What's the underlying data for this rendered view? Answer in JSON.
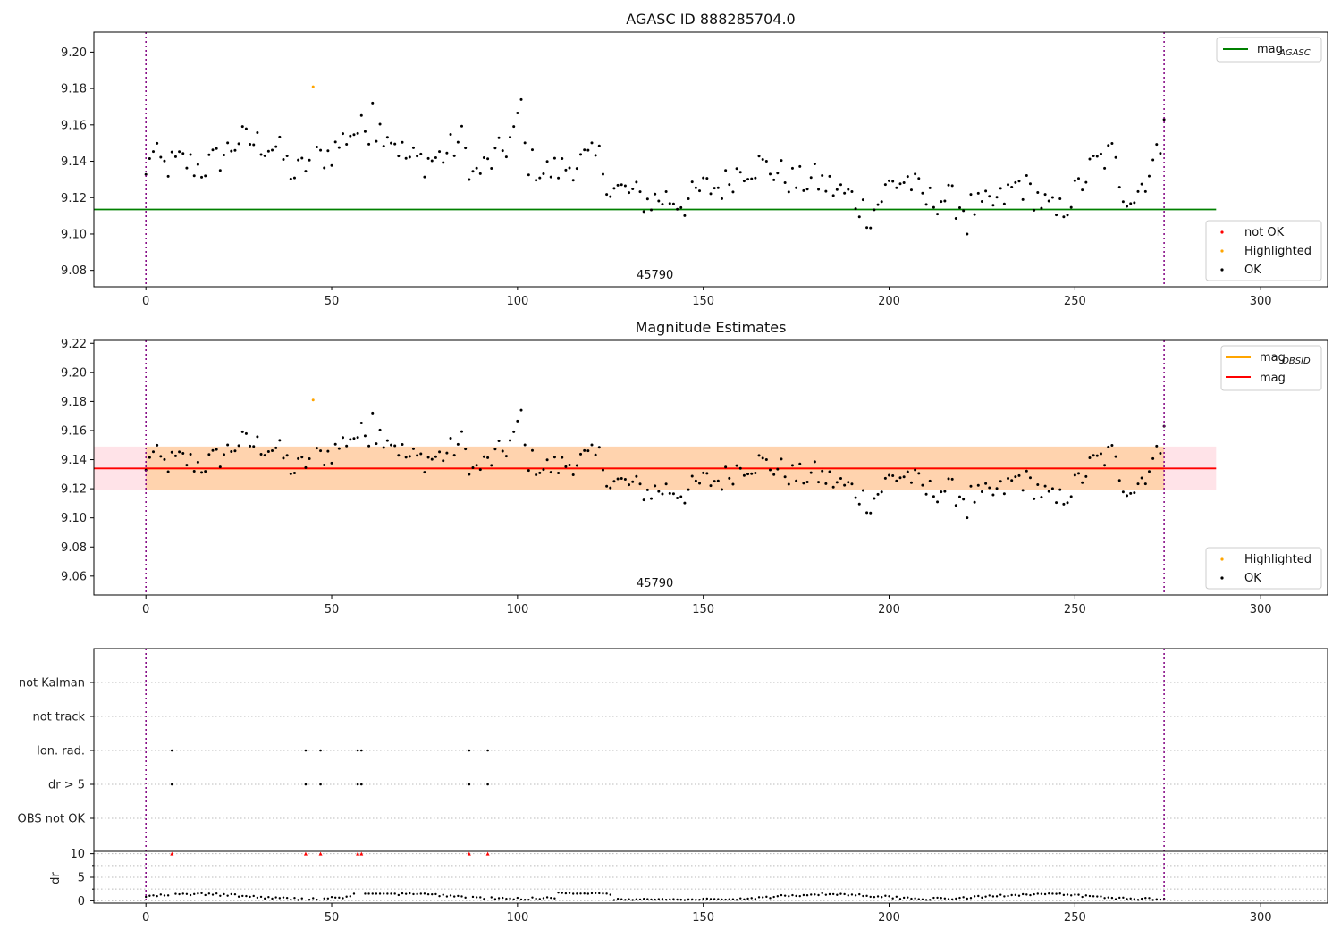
{
  "chart_data": [
    {
      "type": "scatter",
      "title": "AGASC ID 888285704.0",
      "xlim": [
        -14,
        318
      ],
      "ylim": [
        9.071,
        9.211
      ],
      "x_ticks": [
        "0",
        "50",
        "100",
        "150",
        "200",
        "250",
        "300"
      ],
      "y_ticks": [
        "9.08",
        "9.10",
        "9.12",
        "9.14",
        "9.16",
        "9.18",
        "9.20"
      ],
      "mag_agasc": 9.1135,
      "mag_agasc_x_end": 288,
      "obsid_label": "45790",
      "obsid_label_x": 137,
      "vlines": [
        0,
        274
      ],
      "highlighted": [
        {
          "x": 45,
          "y": 9.181
        }
      ],
      "legend_top": [
        {
          "label": "mag",
          "sub": "AGASC",
          "color": "#008000"
        }
      ],
      "legend_bottom": [
        {
          "label": "not OK",
          "color": "#ff0000"
        },
        {
          "label": "Highlighted",
          "color": "#ffa500"
        },
        {
          "label": "OK",
          "color": "#000000"
        }
      ],
      "grid": false
    },
    {
      "type": "scatter",
      "title": "Magnitude Estimates",
      "xlim": [
        -14,
        318
      ],
      "ylim": [
        9.047,
        9.222
      ],
      "x_ticks": [
        "0",
        "50",
        "100",
        "150",
        "200",
        "250",
        "300"
      ],
      "y_ticks": [
        "9.06",
        "9.08",
        "9.10",
        "9.12",
        "9.14",
        "9.16",
        "9.18",
        "9.20",
        "9.22"
      ],
      "mag": 9.134,
      "mag_band": [
        9.119,
        9.149
      ],
      "mag_obsid": 9.134,
      "band_x_end": 288,
      "obsid_label": "45790",
      "obsid_label_x": 137,
      "vlines": [
        0,
        274
      ],
      "highlighted": [
        {
          "x": 45,
          "y": 9.181
        }
      ],
      "legend_top": [
        {
          "label": "mag",
          "sub": "OBSID",
          "color": "#ffa500"
        },
        {
          "label": "mag",
          "sub": "",
          "color": "#ff0000"
        }
      ],
      "legend_bottom": [
        {
          "label": "Highlighted",
          "color": "#ffa500"
        },
        {
          "label": "OK",
          "color": "#000000"
        }
      ],
      "grid": false
    },
    {
      "type": "scatter",
      "title": "",
      "xlim": [
        -14,
        318
      ],
      "x_ticks": [
        "0",
        "50",
        "100",
        "150",
        "200",
        "250",
        "300"
      ],
      "flag_rows": [
        "not Kalman",
        "not track",
        "Ion. rad.",
        "dr > 5",
        "OBS not OK"
      ],
      "flag_points": {
        "Ion. rad.": [
          7,
          43,
          47,
          57,
          58,
          87,
          92
        ],
        "dr > 5": [
          7,
          43,
          47,
          57,
          58,
          87,
          92
        ]
      },
      "dr_ylabel": "dr",
      "dr_yticks": [
        "0",
        "5",
        "10"
      ],
      "dr_ylim": [
        -0.5,
        10.5
      ],
      "dr_high_x": [
        7,
        43,
        47,
        57,
        58,
        87,
        92
      ],
      "vlines": [
        0,
        274
      ],
      "grid": true
    }
  ]
}
